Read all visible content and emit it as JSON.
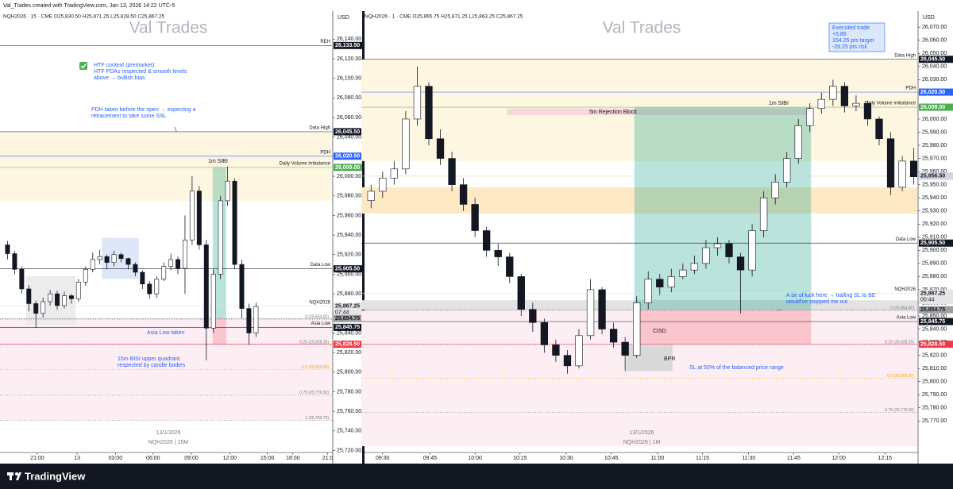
{
  "header": "Val_Trades created with TradingView.com, Jan 13, 2026 14:22 UTC-5",
  "brand": "TradingView",
  "chart_data": [
    {
      "type": "candlestick",
      "title": "NQH2026 · 15 · CME  O25,830.50  H25,871.25  L25,828.50  C25,867.25",
      "watermark": "Val Trades",
      "currency": "USD",
      "up_color": "#ffffff",
      "down_color": "#131722",
      "open": [
        25930,
        25921,
        25905,
        25885,
        25870,
        25860,
        25872,
        25880,
        25868,
        25878,
        25875,
        25892,
        25905,
        25915,
        25918,
        25912,
        25920,
        25916,
        25910,
        25902,
        25890,
        25880,
        25895,
        25908,
        25915,
        25906,
        25935,
        25985,
        25930,
        25845,
        25900,
        25975,
        25995,
        25910,
        25865,
        25840
      ],
      "high": [
        25934,
        25924,
        25908,
        25889,
        25873,
        25876,
        25884,
        25883,
        25882,
        25880,
        25895,
        25908,
        25922,
        25925,
        25920,
        25924,
        25922,
        25917,
        25912,
        25904,
        25893,
        25898,
        25912,
        25921,
        25918,
        25960,
        26000,
        25990,
        25935,
        25905,
        25980,
        26010,
        25998,
        25915,
        25870,
        25871
      ],
      "low": [
        25915,
        25900,
        25880,
        25862,
        25845,
        25856,
        25868,
        25864,
        25865,
        25870,
        25872,
        25888,
        25902,
        25910,
        25905,
        25908,
        25912,
        25905,
        25898,
        25885,
        25875,
        25876,
        25893,
        25904,
        25900,
        25880,
        25930,
        25925,
        25812,
        25840,
        25895,
        25970,
        25905,
        25855,
        25828,
        25836
      ],
      "close": [
        25921,
        25905,
        25885,
        25870,
        25860,
        25872,
        25880,
        25868,
        25878,
        25875,
        25892,
        25905,
        25915,
        25918,
        25912,
        25920,
        25916,
        25910,
        25902,
        25890,
        25880,
        25895,
        25908,
        25915,
        25906,
        25935,
        25985,
        25930,
        25845,
        25900,
        25975,
        25995,
        25910,
        25865,
        25840,
        25867
      ],
      "xlim": [
        0,
        46.2
      ],
      "xticks": [
        {
          "value": 4.7,
          "label": "21:00"
        },
        {
          "value": 10.3,
          "label": "13"
        },
        {
          "value": 15.7,
          "label": "03:00"
        },
        {
          "value": 21.0,
          "label": "06:00"
        },
        {
          "value": 26.4,
          "label": "09:00"
        },
        {
          "value": 31.8,
          "label": "12:00"
        },
        {
          "value": 37.1,
          "label": "15:00"
        },
        {
          "value": 40.7,
          "label": "18:00"
        },
        {
          "value": 45.6,
          "label": "21:0"
        }
      ],
      "ylim": [
        25718,
        26167
      ],
      "yticks": [
        {
          "value": 25720,
          "label": "25,720.00"
        },
        {
          "value": 25740,
          "label": "25,740.00"
        },
        {
          "value": 25760,
          "label": "25,760.00"
        },
        {
          "value": 25780,
          "label": "25,780.00"
        },
        {
          "value": 25800,
          "label": "25,800.00"
        },
        {
          "value": 25820,
          "label": "25,820.00"
        },
        {
          "value": 25840,
          "label": "25,840.00"
        },
        {
          "value": 25860,
          "label": "25,860.00"
        },
        {
          "value": 25880,
          "label": "25,880.00"
        },
        {
          "value": 25900,
          "label": "25,900.00"
        },
        {
          "value": 25920,
          "label": "25,920.00"
        },
        {
          "value": 25940,
          "label": "25,940.00"
        },
        {
          "value": 25960,
          "label": "25,960.00"
        },
        {
          "value": 25980,
          "label": "25,980.00"
        },
        {
          "value": 26000,
          "label": "26,000.00"
        },
        {
          "value": 26020,
          "label": "26,020.00"
        },
        {
          "value": 26040,
          "label": "26,040.00"
        },
        {
          "value": 26060,
          "label": "26,060.00"
        },
        {
          "value": 26080,
          "label": "26,080.00"
        },
        {
          "value": 26100,
          "label": "26,100.00"
        },
        {
          "value": 26120,
          "label": "26,120.00"
        },
        {
          "value": 26140,
          "label": "26,140.00"
        }
      ],
      "zones": [
        {
          "from": 25975,
          "to": 26045.5,
          "color": "#fdf6e0"
        },
        {
          "from": 25750.75,
          "to": 25854,
          "color": "#fdeef4"
        },
        {
          "from": 25895,
          "to": 25937,
          "x0": 13.8,
          "x1": 19.0,
          "color": "#dde7f7"
        },
        {
          "from": 25848,
          "to": 25898,
          "x0": 3.1,
          "x1": 10.1,
          "color": "#ececec"
        }
      ],
      "trade": {
        "x0": 29.4,
        "x1": 31.3,
        "entry": 25854.75,
        "target": 26009,
        "stop": 25828.5
      },
      "levels": [
        {
          "name": "REH",
          "price": {
            "value": 26133.5,
            "label": "26,133.50"
          },
          "color": "#131722"
        },
        {
          "name": "Data High",
          "price": {
            "value": 26045.5,
            "label": "26,045.50"
          },
          "color": "#131722"
        },
        {
          "name": "PDH",
          "price": {
            "value": 26020.5,
            "label": "26,020.50"
          },
          "color": "#2962ff"
        },
        {
          "name": "Daily Volume Imbalance",
          "price": {
            "value": 26009,
            "label": "26,009.00"
          },
          "color": "#4caf50"
        },
        {
          "name": "Data Low",
          "price": {
            "value": 25905.5,
            "label": "25,905.50"
          },
          "color": "#131722"
        },
        {
          "name": "NQH2026",
          "price": {
            "value": 25867.25,
            "label": "25,867.25"
          },
          "color": "#e6e6e6",
          "countdown": "07:44"
        },
        {
          "price": {
            "value": 25854.75,
            "label": "25,854.75"
          },
          "color": "#9e9e9e"
        },
        {
          "name": "Asia Low",
          "price": {
            "value": 25845.75,
            "label": "25,845.75"
          },
          "color": "#131722"
        },
        {
          "price": {
            "value": 25828.5,
            "label": "25,828.50"
          },
          "color": "#f23645"
        }
      ],
      "fibs": [
        {
          "value": 25854,
          "label": "0 (25,854.00)",
          "color": "#787b86"
        },
        {
          "value": 25828.25,
          "label": "0.25 (25,828.25)",
          "color": "#787b86"
        },
        {
          "value": 25802.5,
          "label": "0.5 (25,802.50)",
          "color": "#ff9800"
        },
        {
          "value": 25776.5,
          "label": "0.75 (25,776.50)",
          "color": "#787b86"
        },
        {
          "value": 25750.75,
          "label": "1 (25,750.75)",
          "color": "#787b86"
        }
      ],
      "annotations": [
        {
          "lines": [
            "HTF context (premarket):",
            "HTF PDAs respected & smooth levels",
            "above → bullish bias"
          ],
          "color": "#2962ff"
        },
        {
          "lines": [
            "PDH taken before the open → expecting a",
            "retracement to take some SSL"
          ],
          "color": "#2962ff"
        },
        {
          "lines": [
            "1m SIBI"
          ],
          "color": "#131722"
        },
        {
          "lines": [
            "Asia Low taken"
          ],
          "color": "#2962ff"
        },
        {
          "lines": [
            "15m BISI upper quadrant",
            "respected by candle bodies"
          ],
          "color": "#2962ff"
        }
      ],
      "date_label": "13/1/2026",
      "symbol_label": "NQH2026 | 15M"
    },
    {
      "type": "candlestick",
      "title": "NQH2026 · 1 · CME  O25,865.75  H25,871.25  L25,863.25  C25,867.25",
      "watermark": "Val Trades",
      "currency": "USD",
      "up_color": "#ffffff",
      "down_color": "#131722",
      "open": [
        25938,
        25945,
        25955,
        25962,
        26000,
        26025,
        25985,
        25970,
        25950,
        25935,
        25915,
        25900,
        25895,
        25880,
        25855,
        25845,
        25828,
        25820,
        25812,
        25835,
        25870,
        25840,
        25830,
        25820,
        25860,
        25878,
        25872,
        25880,
        25885,
        25890,
        25902,
        25905,
        25895,
        25885,
        25915,
        25940,
        25952,
        25970,
        25995,
        26008,
        26015,
        26025,
        26010,
        26012,
        26000,
        25985,
        25948,
        25968
      ],
      "high": [
        25950,
        25960,
        25968,
        26006,
        26040,
        26028,
        25992,
        25975,
        25955,
        25940,
        25918,
        25905,
        25898,
        25882,
        25860,
        25848,
        25832,
        25824,
        25840,
        25878,
        25872,
        25845,
        25834,
        25865,
        25884,
        25882,
        25886,
        25890,
        25896,
        25908,
        25910,
        25908,
        25898,
        25920,
        25945,
        25958,
        25975,
        26000,
        26012,
        26020,
        26030,
        26028,
        26018,
        26014,
        26002,
        25990,
        25972,
        25978
      ],
      "low": [
        25932,
        25940,
        25950,
        25958,
        25995,
        25980,
        25965,
        25945,
        25930,
        25910,
        25895,
        25888,
        25875,
        25850,
        25838,
        25822,
        25815,
        25806,
        25810,
        25832,
        25836,
        25826,
        25808,
        25818,
        25855,
        25866,
        25868,
        25878,
        25882,
        25886,
        25896,
        25890,
        25852,
        25880,
        25910,
        25935,
        25948,
        25966,
        25990,
        26004,
        26010,
        26005,
        26006,
        25995,
        25980,
        25942,
        25945,
        25950
      ],
      "close": [
        25945,
        25955,
        25962,
        26000,
        26025,
        25985,
        25970,
        25950,
        25935,
        25915,
        25900,
        25895,
        25880,
        25855,
        25845,
        25828,
        25820,
        25812,
        25835,
        25870,
        25840,
        25830,
        25820,
        25860,
        25878,
        25872,
        25880,
        25885,
        25890,
        25902,
        25905,
        25895,
        25885,
        25915,
        25940,
        25952,
        25970,
        25995,
        26008,
        26015,
        26025,
        26010,
        26012,
        26000,
        25985,
        25948,
        25968,
        25956
      ],
      "xlim": [
        0,
        47.8
      ],
      "xticks": [
        {
          "value": 1.5,
          "label": "09:30"
        },
        {
          "value": 5.6,
          "label": "09:45"
        },
        {
          "value": 9.5,
          "label": "10:00"
        },
        {
          "value": 13.4,
          "label": "10:15"
        },
        {
          "value": 17.4,
          "label": "10:30"
        },
        {
          "value": 21.3,
          "label": "10:45"
        },
        {
          "value": 25.3,
          "label": "11:00"
        },
        {
          "value": 29.2,
          "label": "11:15"
        },
        {
          "value": 33.2,
          "label": "11:30"
        },
        {
          "value": 37.1,
          "label": "11:45"
        },
        {
          "value": 41.0,
          "label": "12:00"
        },
        {
          "value": 45.0,
          "label": "12:15"
        }
      ],
      "ylim": [
        25746,
        26081
      ],
      "yticks": [
        {
          "value": 25770,
          "label": "25,770.00"
        },
        {
          "value": 25780,
          "label": "25,780.00"
        },
        {
          "value": 25790,
          "label": "25,790.00"
        },
        {
          "value": 25800,
          "label": "25,800.00"
        },
        {
          "value": 25810,
          "label": "25,810.00"
        },
        {
          "value": 25820,
          "label": "25,820.00"
        },
        {
          "value": 25830,
          "label": "25,830.00"
        },
        {
          "value": 25840,
          "label": "25,840.00"
        },
        {
          "value": 25850,
          "label": "25,850.00"
        },
        {
          "value": 25860,
          "label": "25,860.00"
        },
        {
          "value": 25870,
          "label": "25,870.00"
        },
        {
          "value": 25880,
          "label": "25,880.00"
        },
        {
          "value": 25890,
          "label": "25,890.00"
        },
        {
          "value": 25900,
          "label": "25,900.00"
        },
        {
          "value": 25910,
          "label": "25,910.00"
        },
        {
          "value": 25920,
          "label": "25,920.00"
        },
        {
          "value": 25930,
          "label": "25,930.00"
        },
        {
          "value": 25940,
          "label": "25,940.00"
        },
        {
          "value": 25950,
          "label": "25,950.00"
        },
        {
          "value": 25960,
          "label": "25,960.00"
        },
        {
          "value": 25970,
          "label": "25,970.00"
        },
        {
          "value": 25980,
          "label": "25,980.00"
        },
        {
          "value": 25990,
          "label": "25,990.00"
        },
        {
          "value": 26000,
          "label": "26,000.00"
        },
        {
          "value": 26010,
          "label": "26,010.00"
        },
        {
          "value": 26020,
          "label": "26,020.00"
        },
        {
          "value": 26030,
          "label": "26,030.00"
        },
        {
          "value": 26040,
          "label": "26,040.00"
        },
        {
          "value": 26050,
          "label": "26,050.00"
        },
        {
          "value": 26060,
          "label": "26,060.00"
        },
        {
          "value": 26070,
          "label": "26,070.00"
        }
      ],
      "zones": [
        {
          "from": 25968,
          "to": 26045.5,
          "color": "#fdf6e0"
        },
        {
          "from": 25928,
          "to": 25948,
          "color": "#fde9c4"
        },
        {
          "from": 25750.75,
          "to": 25854,
          "color": "#fdeef4"
        },
        {
          "from": 25854.75,
          "to": 25862,
          "color": "#e3e3e3"
        },
        {
          "from": 25808,
          "to": 25828,
          "x0": 22.6,
          "x1": 26.6,
          "color": "#d9d9d9"
        },
        {
          "from": 26003,
          "to": 26008,
          "x0": 12.3,
          "x1": 38.6,
          "color": "#f8d7da"
        }
      ],
      "trade": {
        "x0": 23.3,
        "x1": 38.6,
        "entry": 25854.75,
        "target": 26009,
        "stop": 25828.5
      },
      "levels": [
        {
          "name": "Data High",
          "price": {
            "value": 26045.5,
            "label": "26,045.50"
          },
          "color": "#131722"
        },
        {
          "name": "PDH",
          "price": {
            "value": 26020.5,
            "label": "26,020.50"
          },
          "color": "#2962ff"
        },
        {
          "name": "Daily Volume Imbalance",
          "price": {
            "value": 26009,
            "label": "26,009.00"
          },
          "color": "#4caf50"
        },
        {
          "price": {
            "value": 25956.5,
            "label": "25,956.50"
          },
          "color": "#d1d4dc"
        },
        {
          "name": "Data Low",
          "price": {
            "value": 25905.5,
            "label": "25,905.50"
          },
          "color": "#131722"
        },
        {
          "name": "NQH2026",
          "price": {
            "value": 25867.25,
            "label": "25,867.25"
          },
          "color": "#e6e6e6",
          "countdown": "00:44"
        },
        {
          "price": {
            "value": 25854.75,
            "label": "25,854.75"
          },
          "color": "#9e9e9e"
        },
        {
          "name": "Asia Low",
          "price": {
            "value": 25845.75,
            "label": "25,845.75"
          },
          "color": "#131722"
        },
        {
          "price": {
            "value": 25828.5,
            "label": "25,828.50"
          },
          "color": "#f23645"
        }
      ],
      "fibs": [
        {
          "value": 25854,
          "label": "0 (25,854.00)",
          "color": "#787b86"
        },
        {
          "value": 25828.25,
          "label": "0.25 (25,828.25)",
          "color": "#787b86"
        },
        {
          "value": 25802.5,
          "label": "0.5 (25,802.50)",
          "color": "#ff9800"
        },
        {
          "value": 25776.5,
          "label": "0.75 (25,776.50)",
          "color": "#787b86"
        }
      ],
      "annotations": [
        {
          "lines": [
            "Executed trade",
            "+5.88",
            "154.25 pts target",
            "-26.25 pts risk"
          ],
          "color": "#2962ff"
        },
        {
          "lines": [
            "5m Rejection Block"
          ],
          "color": "#131722"
        },
        {
          "lines": [
            "1m SIBI"
          ],
          "color": "#131722"
        },
        {
          "lines": [
            "CISD"
          ],
          "color": "#131722"
        },
        {
          "lines": [
            "BPR"
          ],
          "color": "#131722"
        },
        {
          "lines": [
            "SL at 50% of the balanced price range"
          ],
          "color": "#2962ff"
        },
        {
          "lines": [
            "A bit of luck here → trailing SL to BE",
            "would've stopped me out"
          ],
          "color": "#2962ff"
        }
      ],
      "date_label": "13/1/2026",
      "symbol_label": "NQH2026 | 1M"
    }
  ]
}
